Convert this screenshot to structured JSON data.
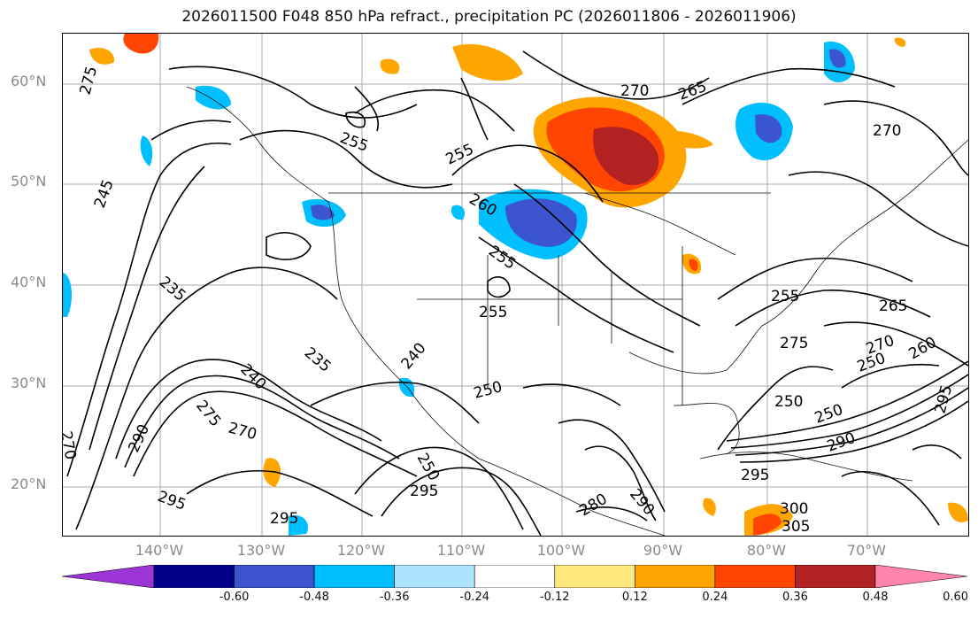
{
  "title": "2026011500 F048 850 hPa refract., precipitation PC (2026011806 - 2026011906)",
  "latitude_labels": [
    "60°N",
    "50°N",
    "40°N",
    "30°N",
    "20°N"
  ],
  "longitude_labels": [
    "140°W",
    "130°W",
    "120°W",
    "110°W",
    "100°W",
    "90°W",
    "80°W",
    "70°W"
  ],
  "contour_labels": [
    "270",
    "265",
    "255",
    "255",
    "260",
    "255",
    "250",
    "245",
    "235",
    "240",
    "235",
    "255",
    "275",
    "270",
    "290",
    "295",
    "295",
    "295",
    "250",
    "240",
    "270",
    "275",
    "250",
    "250",
    "290",
    "295",
    "300",
    "305",
    "265",
    "270",
    "260",
    "295",
    "255",
    "270",
    "250",
    "275",
    "280",
    "290"
  ],
  "colorbar": {
    "colors": [
      "#9d35d4",
      "#00008b",
      "#3c55cf",
      "#00bfff",
      "#aee3ff",
      "#ffffff",
      "#ffe97f",
      "#ffa500",
      "#ff4500",
      "#b22222",
      "#ff85ad"
    ],
    "tick_labels": [
      "-0.60",
      "-0.48",
      "-0.36",
      "-0.24",
      "-0.12",
      "0.12",
      "0.24",
      "0.36",
      "0.48",
      "0.60"
    ]
  }
}
